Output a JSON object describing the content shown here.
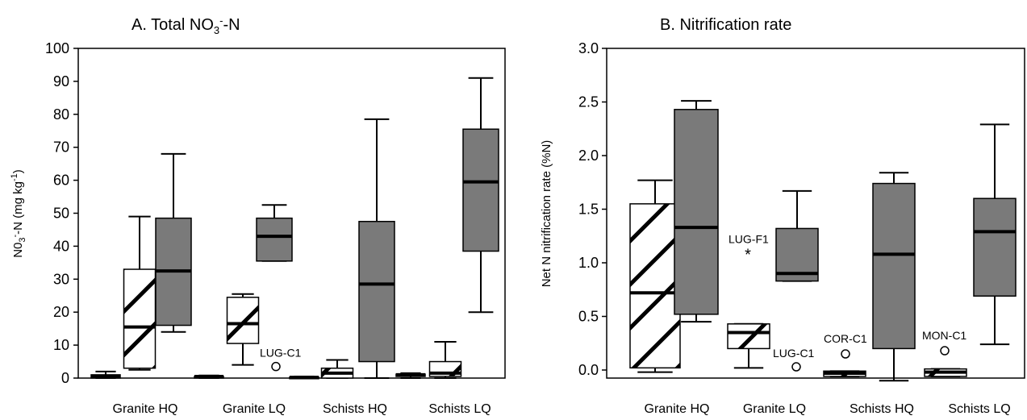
{
  "chart_data": [
    {
      "type": "box",
      "title": "A. Total NO3--N",
      "ylabel": "N03--N (mg kg-1)",
      "ylim": [
        0,
        100
      ],
      "yticks": [
        0,
        10,
        20,
        30,
        40,
        50,
        60,
        70,
        80,
        90,
        100
      ],
      "categories": [
        "Granite HQ",
        "Granite LQ",
        "Schists HQ",
        "Schists LQ"
      ],
      "series": [
        {
          "style": "hatched",
          "boxes": [
            {
              "min": 2.5,
              "q1": 3,
              "median": 15.5,
              "q3": 33,
              "max": 49
            },
            {
              "min": 4,
              "q1": 10.5,
              "median": 16.5,
              "q3": 24.5,
              "max": 25.5
            },
            {
              "min": 0,
              "q1": 0,
              "median": 1.5,
              "q3": 3,
              "max": 5.5
            },
            {
              "min": 0,
              "q1": 0.5,
              "median": 1.5,
              "q3": 5,
              "max": 11
            }
          ]
        },
        {
          "style": "filled",
          "boxes": [
            {
              "min": 14,
              "q1": 16,
              "median": 32.5,
              "q3": 48.5,
              "max": 68
            },
            {
              "min": 35.5,
              "q1": 35.5,
              "median": 43,
              "q3": 48.5,
              "max": 52.5
            },
            {
              "min": 0,
              "q1": 5,
              "median": 28.5,
              "q3": 47.5,
              "max": 78.5
            },
            {
              "min": 20,
              "q1": 38.5,
              "median": 59.5,
              "q3": 75.5,
              "max": 91
            }
          ]
        }
      ],
      "small_boxes": [
        {
          "category": 0,
          "min": 0,
          "q1": 0,
          "median": 0.5,
          "q3": 1,
          "max": 2
        },
        {
          "category": 1,
          "min": 0,
          "q1": 0,
          "median": 0.5,
          "q3": 0.5,
          "max": 0.8
        },
        {
          "category": 2,
          "min": 0,
          "q1": 0,
          "median": 0.2,
          "q3": 0.3,
          "max": 0.5
        },
        {
          "category": 3,
          "min": 0,
          "q1": 0.5,
          "median": 1,
          "q3": 1.2,
          "max": 1.5
        }
      ],
      "outliers": [
        {
          "label": "LUG-C1",
          "category": 1,
          "value": 3.5,
          "marker": "circle"
        }
      ]
    },
    {
      "type": "box",
      "title": "B. Nitrification rate",
      "ylabel": "Net N nitrification rate (%N)",
      "ylim": [
        0,
        3.0
      ],
      "yticks": [
        "0.0",
        "0.5",
        "1.0",
        "1.5",
        "2.0",
        "2.5",
        "3.0"
      ],
      "categories": [
        "Granite HQ",
        "Granite LQ",
        "Schists HQ",
        "Schists LQ"
      ],
      "boxes": [
        {
          "category": 0,
          "style": "hatched",
          "min": -0.02,
          "q1": 0.02,
          "median": 0.72,
          "q3": 1.55,
          "max": 1.77
        },
        {
          "category": 0,
          "style": "filled",
          "min": 0.45,
          "q1": 0.52,
          "median": 1.33,
          "q3": 2.43,
          "max": 2.51
        },
        {
          "category": 1,
          "style": "hatched",
          "min": 0.02,
          "q1": 0.2,
          "median": 0.35,
          "q3": 0.43,
          "max": 0.43
        },
        {
          "category": 1,
          "style": "filled",
          "min": 0.83,
          "q1": 0.83,
          "median": 0.9,
          "q3": 1.32,
          "max": 1.67
        },
        {
          "category": 2,
          "style": "hatched",
          "min": -0.06,
          "q1": -0.06,
          "median": -0.03,
          "q3": -0.01,
          "max": -0.01
        },
        {
          "category": 2,
          "style": "filled",
          "min": -0.1,
          "q1": 0.2,
          "median": 1.08,
          "q3": 1.74,
          "max": 1.84
        },
        {
          "category": 3,
          "style": "hatched",
          "min": -0.06,
          "q1": -0.06,
          "median": -0.02,
          "q3": 0.01,
          "max": 0.01
        },
        {
          "category": 3,
          "style": "filled",
          "min": 0.24,
          "q1": 0.69,
          "median": 1.29,
          "q3": 1.6,
          "max": 2.29
        }
      ],
      "outliers": [
        {
          "label": "LUG-F1",
          "category": 0,
          "value": 1.08,
          "marker": "asterisk"
        },
        {
          "label": "LUG-C1",
          "category": 1,
          "value": 0.03,
          "marker": "circle"
        },
        {
          "label": "COR-C1",
          "category": 1,
          "value": 0.15,
          "marker": "circle"
        },
        {
          "label": "MON-C1",
          "category": 2,
          "value": 0.18,
          "marker": "circle"
        }
      ]
    }
  ]
}
